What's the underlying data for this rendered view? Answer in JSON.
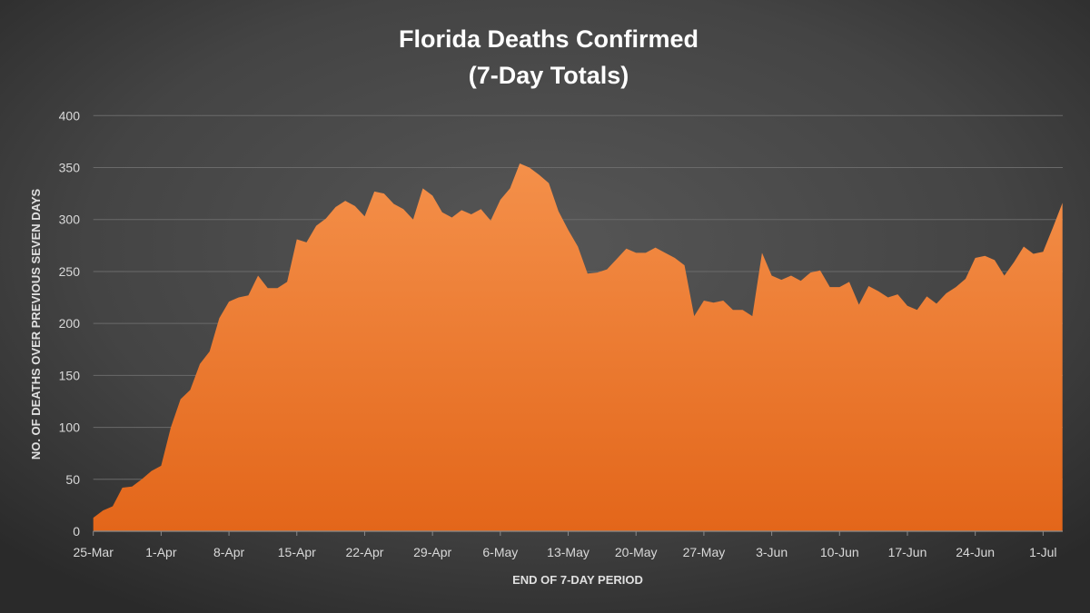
{
  "chart_data": {
    "type": "area",
    "title": [
      "Florida Deaths Confirmed",
      "(7-Day Totals)"
    ],
    "xlabel": "END OF 7-DAY PERIOD",
    "ylabel": "NO. OF DEATHS OVER PREVIOUS SEVEN DAYS",
    "ylim": [
      0,
      400
    ],
    "yticks": [
      0,
      50,
      100,
      150,
      200,
      250,
      300,
      350,
      400
    ],
    "xtick_labels": [
      "25-Mar",
      "1-Apr",
      "8-Apr",
      "15-Apr",
      "22-Apr",
      "29-Apr",
      "6-May",
      "13-May",
      "20-May",
      "27-May",
      "3-Jun",
      "10-Jun",
      "17-Jun",
      "24-Jun",
      "1-Jul"
    ],
    "grid": true,
    "legend": "none",
    "fill_color_top": "#f4904a",
    "fill_color_bottom": "#e3661a",
    "x": [
      "25-Mar",
      "26-Mar",
      "27-Mar",
      "28-Mar",
      "29-Mar",
      "30-Mar",
      "31-Mar",
      "1-Apr",
      "2-Apr",
      "3-Apr",
      "4-Apr",
      "5-Apr",
      "6-Apr",
      "7-Apr",
      "8-Apr",
      "9-Apr",
      "10-Apr",
      "11-Apr",
      "12-Apr",
      "13-Apr",
      "14-Apr",
      "15-Apr",
      "16-Apr",
      "17-Apr",
      "18-Apr",
      "19-Apr",
      "20-Apr",
      "21-Apr",
      "22-Apr",
      "23-Apr",
      "24-Apr",
      "25-Apr",
      "26-Apr",
      "27-Apr",
      "28-Apr",
      "29-Apr",
      "30-Apr",
      "1-May",
      "2-May",
      "3-May",
      "4-May",
      "5-May",
      "6-May",
      "7-May",
      "8-May",
      "9-May",
      "10-May",
      "11-May",
      "12-May",
      "13-May",
      "14-May",
      "15-May",
      "16-May",
      "17-May",
      "18-May",
      "19-May",
      "20-May",
      "21-May",
      "22-May",
      "23-May",
      "24-May",
      "25-May",
      "26-May",
      "27-May",
      "28-May",
      "29-May",
      "30-May",
      "31-May",
      "1-Jun",
      "2-Jun",
      "3-Jun",
      "4-Jun",
      "5-Jun",
      "6-Jun",
      "7-Jun",
      "8-Jun",
      "9-Jun",
      "10-Jun",
      "11-Jun",
      "12-Jun",
      "13-Jun",
      "14-Jun",
      "15-Jun",
      "16-Jun",
      "17-Jun",
      "18-Jun",
      "19-Jun",
      "20-Jun",
      "21-Jun",
      "22-Jun",
      "23-Jun",
      "24-Jun",
      "25-Jun",
      "26-Jun",
      "27-Jun",
      "28-Jun",
      "29-Jun",
      "30-Jun",
      "1-Jul",
      "2-Jul",
      "3-Jul"
    ],
    "values": [
      13,
      20,
      24,
      42,
      43,
      50,
      58,
      63,
      100,
      127,
      136,
      161,
      173,
      205,
      221,
      225,
      227,
      246,
      234,
      234,
      240,
      281,
      278,
      294,
      301,
      312,
      318,
      313,
      303,
      327,
      325,
      315,
      310,
      300,
      330,
      323,
      307,
      302,
      309,
      305,
      310,
      299,
      319,
      330,
      354,
      350,
      343,
      335,
      308,
      290,
      274,
      248,
      249,
      252,
      262,
      272,
      268,
      268,
      273,
      268,
      263,
      256,
      207,
      222,
      220,
      222,
      213,
      213,
      207,
      268,
      246,
      242,
      246,
      241,
      249,
      251,
      235,
      235,
      240,
      218,
      236,
      231,
      225,
      228,
      217,
      213,
      226,
      219,
      229,
      235,
      243,
      263,
      265,
      261,
      246,
      259,
      274,
      267,
      269,
      292,
      316
    ]
  }
}
